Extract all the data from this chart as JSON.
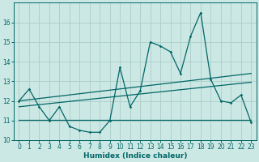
{
  "xlabel": "Humidex (Indice chaleur)",
  "bg_color": "#cce8e4",
  "grid_color": "#b0d0cc",
  "line_color": "#006666",
  "x_values": [
    0,
    1,
    2,
    3,
    4,
    5,
    6,
    7,
    8,
    9,
    10,
    11,
    12,
    13,
    14,
    15,
    16,
    17,
    18,
    19,
    20,
    21,
    22,
    23
  ],
  "y_main": [
    12.0,
    12.6,
    11.7,
    11.0,
    11.7,
    10.7,
    10.5,
    10.4,
    10.4,
    11.0,
    13.7,
    11.7,
    12.5,
    15.0,
    14.8,
    14.5,
    13.4,
    15.3,
    16.5,
    13.1,
    12.0,
    11.9,
    12.3,
    10.9
  ],
  "trend1_x": [
    0,
    23
  ],
  "trend1_y": [
    11.05,
    11.05
  ],
  "trend2_x": [
    0,
    23
  ],
  "trend2_y": [
    11.7,
    12.95
  ],
  "trend3_x": [
    0,
    23
  ],
  "trend3_y": [
    12.0,
    13.4
  ],
  "xlim": [
    -0.5,
    23.5
  ],
  "ylim": [
    10,
    17.0
  ],
  "yticks": [
    10,
    11,
    12,
    13,
    14,
    15,
    16
  ],
  "xticks": [
    0,
    1,
    2,
    3,
    4,
    5,
    6,
    7,
    8,
    9,
    10,
    11,
    12,
    13,
    14,
    15,
    16,
    17,
    18,
    19,
    20,
    21,
    22,
    23
  ],
  "xlabel_fontsize": 6.5,
  "tick_fontsize": 5.5
}
